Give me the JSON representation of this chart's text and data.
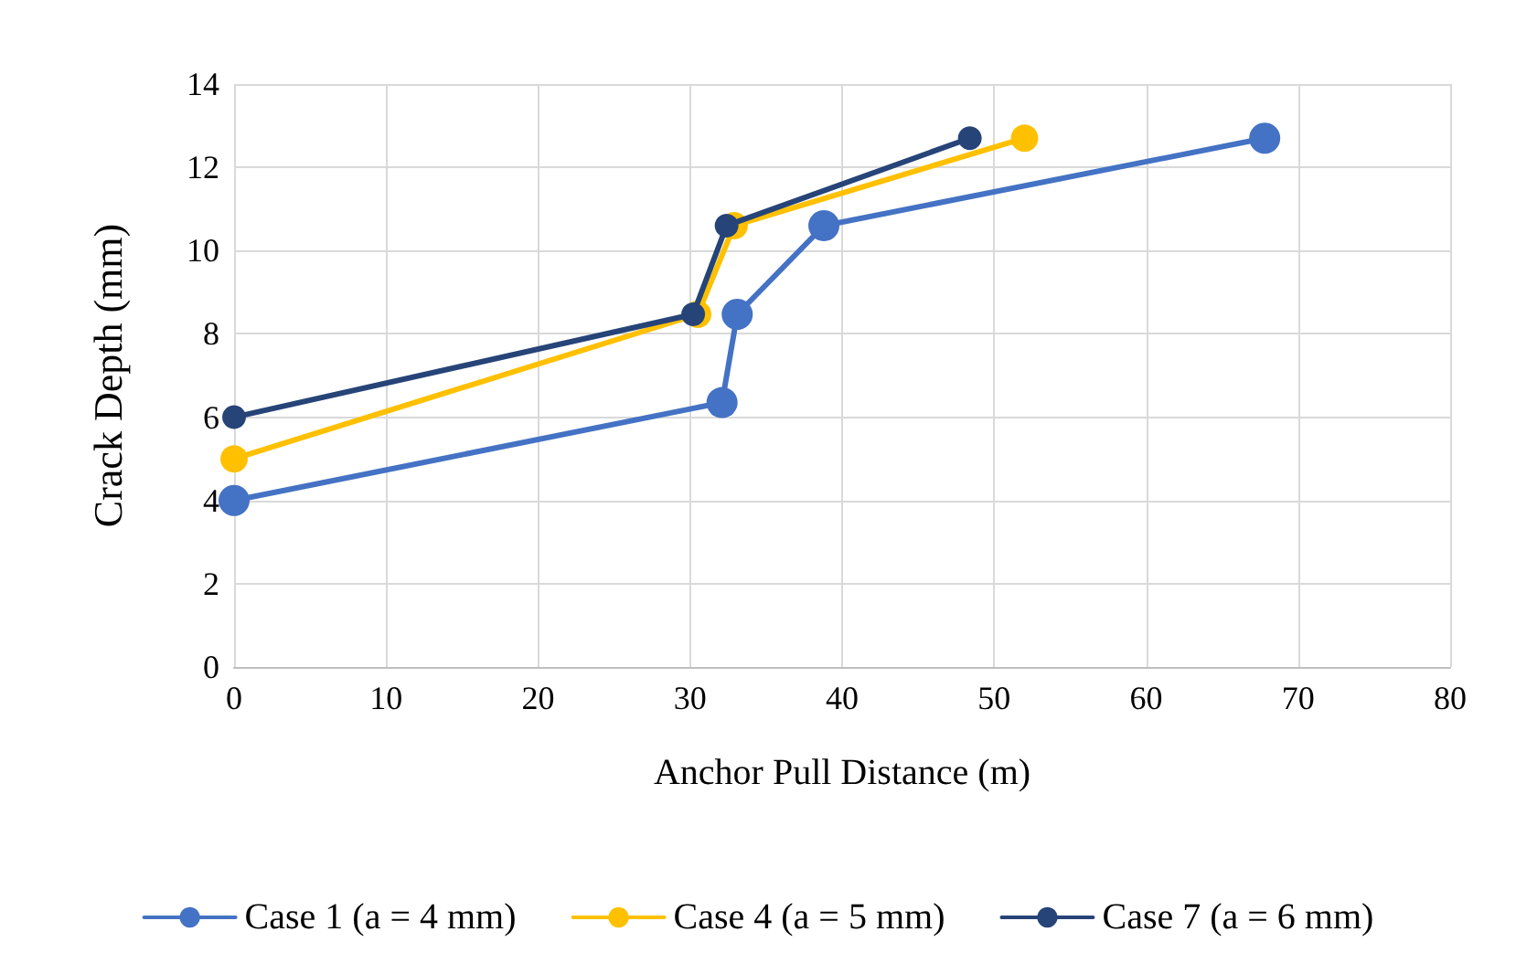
{
  "chart_data": {
    "type": "line",
    "xlabel": "Anchor Pull Distance (m)",
    "ylabel": "Crack Depth (mm)",
    "xlim": [
      0,
      80
    ],
    "xticks": [
      0,
      10,
      20,
      30,
      40,
      50,
      60,
      70,
      80
    ],
    "ylim": [
      0,
      14
    ],
    "yticks": [
      0,
      2,
      4,
      6,
      8,
      10,
      12,
      14
    ],
    "grid": true,
    "legend": "bottom",
    "marker": "circle",
    "line_style": "solid",
    "series": [
      {
        "name": "Case 1 (a = 4 mm)",
        "color": "#4472c4",
        "x": [
          0,
          32.1,
          33.1,
          38.8,
          67.8
        ],
        "values": [
          4,
          6.35,
          8.47,
          10.6,
          12.7
        ]
      },
      {
        "name": "Case 4 (a = 5 mm)",
        "color": "#ffc000",
        "x": [
          0,
          30.5,
          32.9,
          52
        ],
        "values": [
          5,
          8.47,
          10.6,
          12.7
        ]
      },
      {
        "name": "Case 7 (a = 6 mm)",
        "color": "#264478",
        "x": [
          0,
          30.2,
          32.4,
          48.4
        ],
        "values": [
          6,
          8.47,
          10.6,
          12.7
        ]
      }
    ]
  }
}
